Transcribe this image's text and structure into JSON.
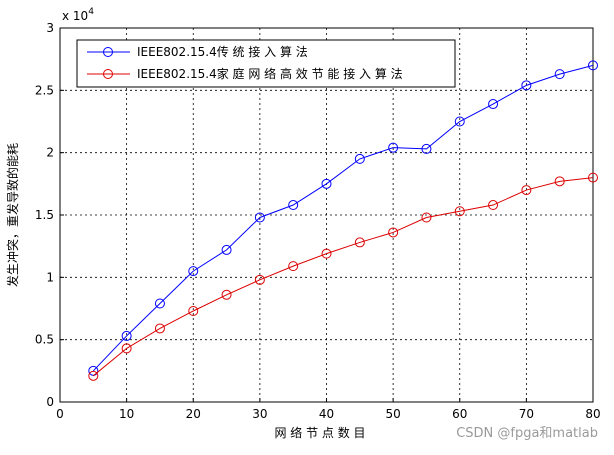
{
  "chart_data": {
    "type": "line",
    "title": "",
    "xlabel": "网 络 节 点 数 目",
    "ylabel": "发生冲突，重发导致的能耗",
    "y_multiplier": "x 10",
    "y_multiplier_exp": "4",
    "xlim": [
      0,
      80
    ],
    "ylim": [
      0,
      30000
    ],
    "x_ticks": [
      0,
      10,
      20,
      30,
      40,
      50,
      60,
      70,
      80
    ],
    "y_ticks": [
      0,
      5000,
      10000,
      15000,
      20000,
      25000,
      30000
    ],
    "x_tick_labels": [
      "0",
      "10",
      "20",
      "30",
      "40",
      "50",
      "60",
      "70",
      "80"
    ],
    "y_tick_labels": [
      "0",
      "0.5",
      "1",
      "1.5",
      "2",
      "2.5",
      "3"
    ],
    "grid": true,
    "legend_position": "top-left",
    "x": [
      5,
      10,
      15,
      20,
      25,
      30,
      35,
      40,
      45,
      50,
      55,
      60,
      65,
      70,
      75,
      80
    ],
    "series": [
      {
        "name": "IEEE802.15.4传 统 接 入 算 法",
        "color": "#0000ff",
        "marker": "circle",
        "values": [
          2500,
          5300,
          7900,
          10500,
          12200,
          14800,
          15800,
          17500,
          19500,
          20400,
          20300,
          22500,
          23900,
          25400,
          26300,
          27000
        ]
      },
      {
        "name": "IEEE802.15.4家 庭 网 络 高 效 节 能 接 入 算 法",
        "color": "#dd0000",
        "marker": "circle",
        "values": [
          2100,
          4300,
          5900,
          7300,
          8600,
          9800,
          10900,
          11900,
          12800,
          13600,
          14800,
          15300,
          15800,
          17000,
          17700,
          18000
        ]
      }
    ]
  },
  "watermark": "CSDN @fpga和matlab"
}
